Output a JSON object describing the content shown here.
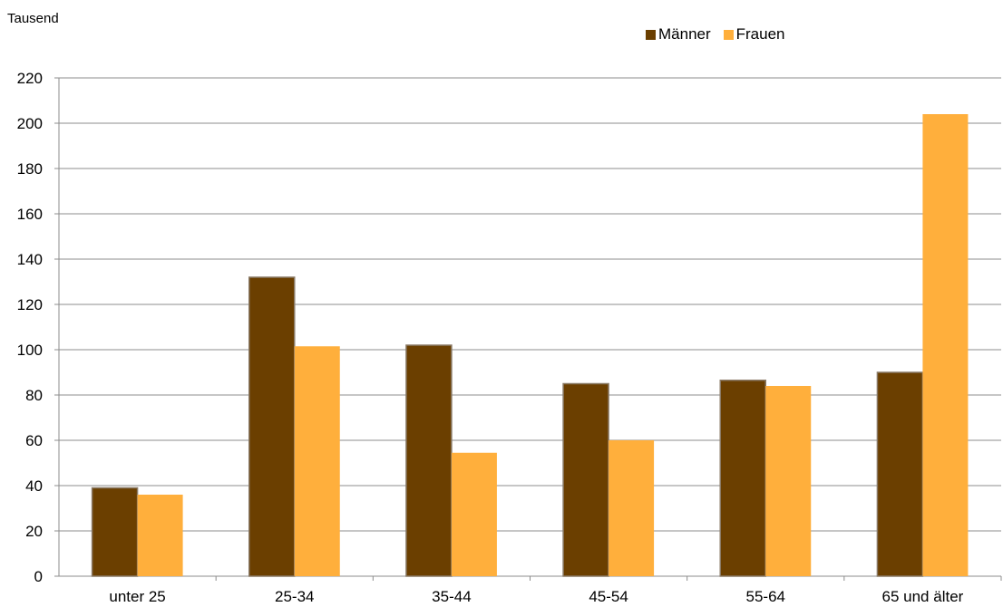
{
  "chart_data": {
    "type": "bar",
    "ylabel": "Tausend",
    "ylim": [
      0,
      220
    ],
    "yticks": [
      0,
      20,
      40,
      60,
      80,
      100,
      120,
      140,
      160,
      180,
      200,
      220
    ],
    "grid": true,
    "legend_position": "top-right",
    "categories": [
      "unter 25",
      "25-34",
      "35-44",
      "45-54",
      "55-64",
      "65 und älter"
    ],
    "series": [
      {
        "name": "Männer",
        "color": "#6b3f00",
        "values": [
          39,
          132,
          102,
          85,
          86.5,
          90
        ]
      },
      {
        "name": "Frauen",
        "color": "#ffaf3c",
        "values": [
          36,
          101.5,
          54.5,
          60,
          84,
          204
        ]
      }
    ]
  }
}
